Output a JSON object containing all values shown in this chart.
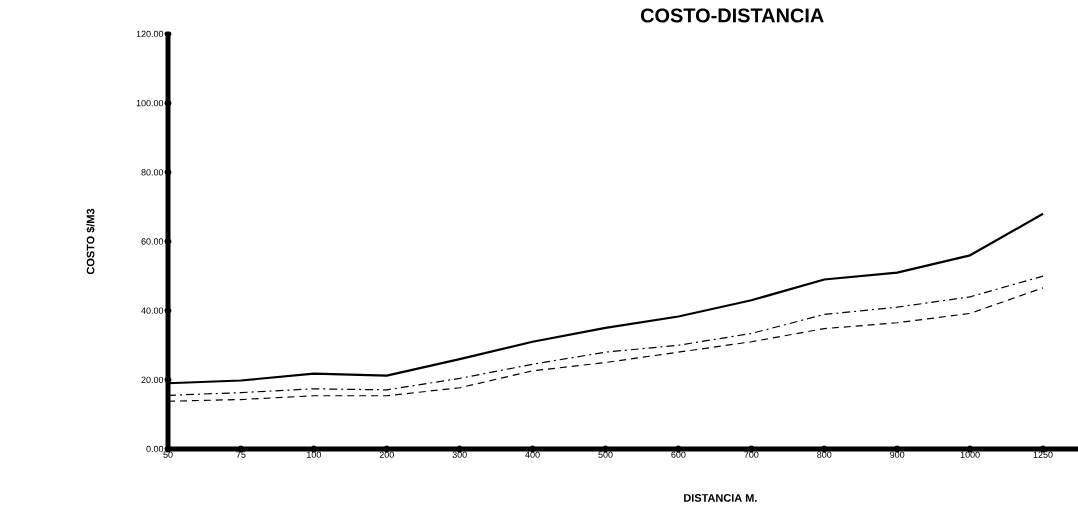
{
  "chart_data": {
    "type": "line",
    "title": "COSTO-DISTANCIA",
    "xlabel": "DISTANCIA  M.",
    "ylabel": "COSTO $/M3",
    "categories": [
      "50",
      "75",
      "100",
      "200",
      "300",
      "400",
      "500",
      "600",
      "700",
      "800",
      "900",
      "1000",
      "1250"
    ],
    "series": [
      {
        "color": "#000000",
        "line_style": "solid",
        "values": [
          19,
          19.8,
          21.8,
          21.2,
          26,
          31,
          35,
          38.3,
          43,
          49,
          51,
          56,
          68
        ]
      },
      {
        "color": "#000000",
        "line_style": "dashdot",
        "values": [
          15.5,
          16.3,
          17.4,
          17.1,
          20.4,
          24.5,
          28,
          30,
          33.4,
          38.9,
          41,
          44,
          50
        ]
      },
      {
        "color": "#000000",
        "line_style": "dashed",
        "values": [
          13.8,
          14.3,
          15.4,
          15.4,
          17.7,
          22.6,
          25,
          28,
          31,
          34.8,
          36.5,
          39.2,
          46.6
        ]
      }
    ],
    "ylim": [
      0,
      120
    ],
    "yticks": [
      {
        "value": 0,
        "label": "0.00"
      },
      {
        "value": 20,
        "label": "20.00"
      },
      {
        "value": 40,
        "label": "40.00"
      },
      {
        "value": 60,
        "label": "60.00"
      },
      {
        "value": 80,
        "label": "80.00"
      },
      {
        "value": 100,
        "label": "100.00"
      },
      {
        "value": 120,
        "label": "120.00"
      }
    ],
    "grid": false,
    "marker": "none"
  }
}
